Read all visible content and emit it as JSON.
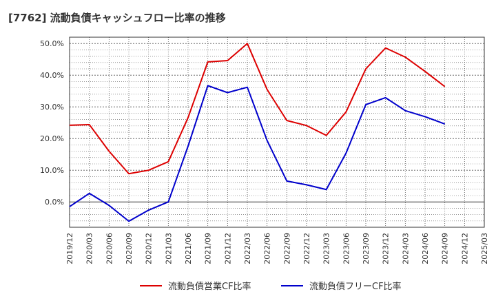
{
  "chart_data": {
    "type": "line",
    "title": "[7762]  流動負債キャッシュフロー比率の推移",
    "xlabel": "",
    "ylabel": "",
    "x": [
      "2019/12",
      "2020/03",
      "2020/06",
      "2020/09",
      "2020/12",
      "2021/03",
      "2021/06",
      "2021/09",
      "2021/12",
      "2022/03",
      "2022/06",
      "2022/09",
      "2022/12",
      "2023/03",
      "2023/06",
      "2023/09",
      "2023/12",
      "2024/03",
      "2024/06",
      "2024/09",
      "2024/12",
      "2025/03"
    ],
    "y_ticks": [
      "0.0%",
      "10.0%",
      "20.0%",
      "30.0%",
      "40.0%",
      "50.0%"
    ],
    "y_tick_values": [
      0,
      10,
      20,
      30,
      40,
      50
    ],
    "ylim": [
      -8,
      52
    ],
    "grid": true,
    "legend_position": "bottom",
    "series": [
      {
        "name": "流動負債営業CF比率",
        "color": "#dd0000",
        "values": [
          24.2,
          24.4,
          16.0,
          8.9,
          10.0,
          12.7,
          26.6,
          44.2,
          44.6,
          50.0,
          35.5,
          25.7,
          24.1,
          21.0,
          28.4,
          42.0,
          48.6,
          45.7,
          41.2,
          36.4,
          null,
          null
        ]
      },
      {
        "name": "流動負債フリーCF比率",
        "color": "#0000cc",
        "values": [
          -1.5,
          2.7,
          -1.1,
          -6.1,
          -2.6,
          0.0,
          17.6,
          36.7,
          34.5,
          36.2,
          19.4,
          6.6,
          5.4,
          3.9,
          15.4,
          30.7,
          32.9,
          28.8,
          26.9,
          24.6,
          null,
          null
        ]
      }
    ]
  }
}
